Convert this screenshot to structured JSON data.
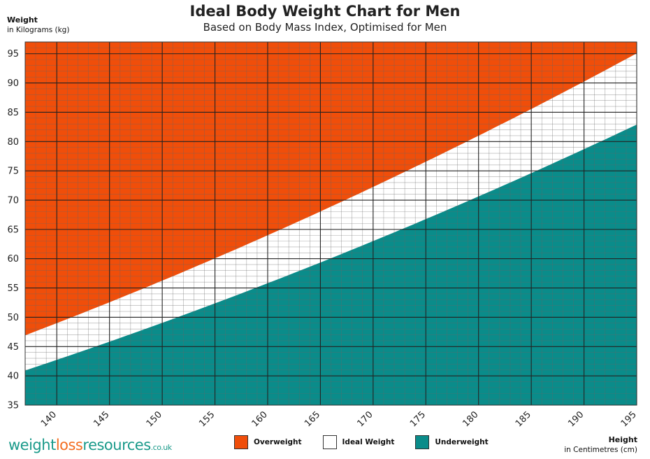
{
  "chart_data": {
    "type": "area",
    "title": "Ideal Body Weight Chart for Men",
    "subtitle": "Based on Body Mass Index, Optimised for Men",
    "ylabel_title": "Weight",
    "ylabel_sub": "in Kilograms (kg)",
    "xlabel_title": "Height",
    "xlabel_sub": "in Centimetres (cm)",
    "xlim": [
      137,
      195
    ],
    "ylim": [
      35,
      97
    ],
    "x_ticks": [
      140,
      145,
      150,
      155,
      160,
      165,
      170,
      175,
      180,
      185,
      190,
      195
    ],
    "y_ticks": [
      35,
      40,
      45,
      50,
      55,
      60,
      65,
      70,
      75,
      80,
      85,
      90,
      95
    ],
    "bmi_lower": 21.8,
    "bmi_upper": 25,
    "series": [
      {
        "name": "Overweight",
        "color": "#f04e0a"
      },
      {
        "name": "Ideal Weight",
        "color": "#ffffff"
      },
      {
        "name": "Underweight",
        "color": "#0a8c8a"
      }
    ]
  },
  "legend": {
    "overweight": "Overweight",
    "ideal": "Ideal Weight",
    "underweight": "Underweight"
  },
  "brand": {
    "part1": "weight",
    "part2": "loss",
    "part3": "resources",
    "part4": ".co.uk"
  },
  "colors": {
    "overweight": "#f04e0a",
    "ideal": "#ffffff",
    "underweight": "#0a8c8a"
  }
}
